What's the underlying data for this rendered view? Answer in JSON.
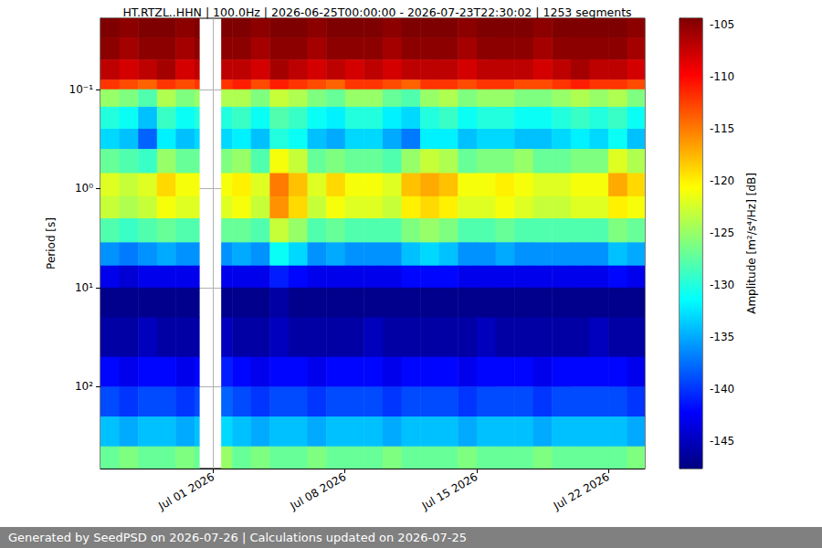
{
  "chart_data": {
    "type": "heatmap",
    "title": "HT.RTZL..HHN | 100.0Hz | 2026-06-25T00:00:00 - 2026-07-23T22:30:02 | 1253 segments",
    "annotation": "Generated by SeedPSD on 2026-07-26 | Calculations updated on 2026-07-25",
    "ylabel": "Period [s]",
    "log": "y",
    "grid": true,
    "xlim": [
      "2026-06-25T00:00:00",
      "2026-07-23T22:30:02"
    ],
    "xticks": [
      {
        "value": "2026-07-01T00:00:00",
        "label": "Jul 01 2026"
      },
      {
        "value": "2026-07-08T00:00:00",
        "label": "Jul 08 2026"
      },
      {
        "value": "2026-07-15T00:00:00",
        "label": "Jul 15 2026"
      },
      {
        "value": "2026-07-22T00:00:00",
        "label": "Jul 22 2026"
      }
    ],
    "ylim": [
      0.0192,
      670
    ],
    "yticks": [
      {
        "value": 0.1,
        "label": "10⁻¹"
      },
      {
        "value": 1,
        "label": "10⁰"
      },
      {
        "value": 10,
        "label": "10¹"
      },
      {
        "value": 100,
        "label": "10²"
      }
    ],
    "x_edges": [
      "2026-06-25T00:00:00",
      "2026-06-26T00:00:00",
      "2026-06-27T00:00:00",
      "2026-06-28T00:00:00",
      "2026-06-29T00:00:00",
      "2026-06-30T00:00:00",
      "2026-06-30T06:00:00",
      "2026-07-01T10:00:00",
      "2026-07-02T00:00:00",
      "2026-07-03T00:00:00",
      "2026-07-04T00:00:00",
      "2026-07-05T00:00:00",
      "2026-07-06T00:00:00",
      "2026-07-07T00:00:00",
      "2026-07-08T00:00:00",
      "2026-07-09T00:00:00",
      "2026-07-10T00:00:00",
      "2026-07-11T00:00:00",
      "2026-07-12T00:00:00",
      "2026-07-13T00:00:00",
      "2026-07-14T00:00:00",
      "2026-07-15T00:00:00",
      "2026-07-16T00:00:00",
      "2026-07-17T00:00:00",
      "2026-07-18T00:00:00",
      "2026-07-19T00:00:00",
      "2026-07-20T00:00:00",
      "2026-07-21T00:00:00",
      "2026-07-22T00:00:00",
      "2026-07-23T00:00:00",
      "2026-07-24T00:00:00"
    ],
    "y_edges": [
      0.0192,
      0.03,
      0.05,
      0.08,
      0.1,
      0.15,
      0.25,
      0.4,
      0.7,
      1.2,
      2,
      3.5,
      6,
      10,
      20,
      50,
      100,
      200,
      400,
      670
    ],
    "cells": [
      [
        -104,
        -105,
        -104,
        -104,
        -105,
        -104,
        null,
        -104,
        -104,
        -105,
        -104,
        -104,
        -105,
        -104,
        -104,
        -104,
        -105,
        -104,
        -104,
        -104,
        -105,
        -104,
        -104,
        -104,
        -105,
        -104,
        -104,
        -104,
        -104,
        -105
      ],
      [
        -105,
        -106,
        -105,
        -105,
        -106,
        -105,
        null,
        -105,
        -105,
        -106,
        -105,
        -105,
        -106,
        -105,
        -105,
        -105,
        -106,
        -105,
        -105,
        -105,
        -106,
        -105,
        -105,
        -105,
        -106,
        -105,
        -105,
        -105,
        -105,
        -106
      ],
      [
        -107,
        -108,
        -107,
        -106,
        -108,
        -107,
        null,
        -107,
        -107,
        -108,
        -106,
        -107,
        -108,
        -107,
        -108,
        -107,
        -108,
        -107,
        -107,
        -107,
        -108,
        -107,
        -107,
        -107,
        -108,
        -107,
        -106,
        -107,
        -107,
        -108
      ],
      [
        -112,
        -113,
        -114,
        -112,
        -113,
        -112,
        null,
        -112,
        -111,
        -113,
        -111,
        -112,
        -113,
        -114,
        -112,
        -112,
        -113,
        -114,
        -112,
        -112,
        -113,
        -112,
        -112,
        -113,
        -113,
        -112,
        -111,
        -112,
        -112,
        -113
      ],
      [
        -125,
        -126,
        -128,
        -124,
        -126,
        -125,
        null,
        -124,
        -124,
        -126,
        -123,
        -124,
        -126,
        -127,
        -125,
        -125,
        -127,
        -128,
        -125,
        -124,
        -126,
        -125,
        -125,
        -126,
        -126,
        -125,
        -124,
        -125,
        -124,
        -126
      ],
      [
        -130,
        -131,
        -134,
        -129,
        -131,
        -130,
        null,
        -130,
        -129,
        -131,
        -128,
        -129,
        -131,
        -132,
        -130,
        -130,
        -132,
        -133,
        -130,
        -129,
        -131,
        -130,
        -130,
        -131,
        -131,
        -130,
        -129,
        -130,
        -129,
        -131
      ],
      [
        -133,
        -134,
        -138,
        -132,
        -134,
        -133,
        null,
        -133,
        -132,
        -134,
        -130,
        -131,
        -134,
        -135,
        -133,
        -133,
        -135,
        -137,
        -132,
        -132,
        -134,
        -133,
        -133,
        -134,
        -134,
        -133,
        -132,
        -133,
        -131,
        -134
      ],
      [
        -127,
        -128,
        -129,
        -125,
        -127,
        -127,
        null,
        -126,
        -125,
        -128,
        -121,
        -123,
        -127,
        -126,
        -127,
        -127,
        -128,
        -125,
        -123,
        -124,
        -127,
        -126,
        -126,
        -125,
        -127,
        -127,
        -126,
        -126,
        -122,
        -124
      ],
      [
        -122,
        -123,
        -122,
        -119,
        -121,
        -121,
        null,
        -121,
        -120,
        -122,
        -115,
        -118,
        -122,
        -119,
        -121,
        -121,
        -122,
        -118,
        -117,
        -118,
        -121,
        -121,
        -120,
        -121,
        -122,
        -122,
        -121,
        -121,
        -117,
        -119
      ],
      [
        -123,
        -124,
        -123,
        -121,
        -122,
        -122,
        null,
        -122,
        -121,
        -123,
        -116,
        -119,
        -123,
        -121,
        -122,
        -122,
        -123,
        -120,
        -119,
        -120,
        -122,
        -122,
        -121,
        -122,
        -123,
        -123,
        -122,
        -122,
        -120,
        -121
      ],
      [
        -128,
        -129,
        -128,
        -127,
        -128,
        -128,
        null,
        -127,
        -127,
        -128,
        -123,
        -125,
        -128,
        -127,
        -128,
        -128,
        -128,
        -126,
        -125,
        -126,
        -128,
        -128,
        -127,
        -128,
        -128,
        -128,
        -128,
        -128,
        -126,
        -127
      ],
      [
        -136,
        -137,
        -136,
        -135,
        -136,
        -136,
        null,
        -136,
        -135,
        -136,
        -131,
        -133,
        -136,
        -135,
        -136,
        -136,
        -136,
        -134,
        -133,
        -134,
        -136,
        -136,
        -135,
        -136,
        -136,
        -136,
        -136,
        -136,
        -134,
        -135
      ],
      [
        -143,
        -144,
        -143,
        -143,
        -143,
        -143,
        null,
        -143,
        -143,
        -143,
        -141,
        -142,
        -143,
        -143,
        -143,
        -143,
        -143,
        -142,
        -142,
        -142,
        -143,
        -143,
        -143,
        -143,
        -143,
        -143,
        -143,
        -143,
        -142,
        -143
      ],
      [
        -147,
        -147,
        -147,
        -147,
        -147,
        -147,
        null,
        -147,
        -147,
        -147,
        -146,
        -147,
        -147,
        -147,
        -147,
        -147,
        -147,
        -147,
        -147,
        -147,
        -147,
        -147,
        -147,
        -147,
        -147,
        -147,
        -147,
        -147,
        -147,
        -147
      ],
      [
        -146,
        -146,
        -145,
        -146,
        -146,
        -146,
        null,
        -145,
        -146,
        -146,
        -145,
        -146,
        -146,
        -146,
        -146,
        -145,
        -146,
        -146,
        -146,
        -146,
        -146,
        -145,
        -146,
        -146,
        -146,
        -146,
        -146,
        -145,
        -146,
        -146
      ],
      [
        -142,
        -143,
        -142,
        -142,
        -143,
        -142,
        null,
        -141,
        -142,
        -143,
        -142,
        -142,
        -143,
        -142,
        -142,
        -142,
        -143,
        -142,
        -142,
        -142,
        -143,
        -142,
        -142,
        -142,
        -143,
        -142,
        -142,
        -142,
        -142,
        -143
      ],
      [
        -139,
        -140,
        -139,
        -139,
        -140,
        -139,
        null,
        -138,
        -139,
        -140,
        -139,
        -139,
        -140,
        -139,
        -139,
        -139,
        -140,
        -139,
        -139,
        -139,
        -140,
        -139,
        -139,
        -139,
        -140,
        -139,
        -139,
        -139,
        -139,
        -140
      ],
      [
        -134,
        -135,
        -134,
        -134,
        -135,
        -134,
        null,
        -133,
        -134,
        -135,
        -134,
        -134,
        -135,
        -134,
        -134,
        -134,
        -135,
        -134,
        -134,
        -134,
        -135,
        -134,
        -134,
        -134,
        -135,
        -134,
        -134,
        -134,
        -134,
        -135
      ],
      [
        -127,
        -126,
        -127,
        -127,
        -126,
        -127,
        null,
        -125,
        -127,
        -126,
        -127,
        -127,
        -126,
        -127,
        -127,
        -127,
        -126,
        -127,
        -127,
        -127,
        -126,
        -127,
        -127,
        -127,
        -126,
        -127,
        -127,
        -127,
        -127,
        -126
      ]
    ],
    "colorbar": {
      "label": "Amplitude [m²/s⁴/Hz] [dB]",
      "lim": [
        -147.6,
        -104.4
      ],
      "ticks": [
        -145,
        -140,
        -135,
        -130,
        -125,
        -120,
        -115,
        -110,
        -105
      ]
    }
  }
}
